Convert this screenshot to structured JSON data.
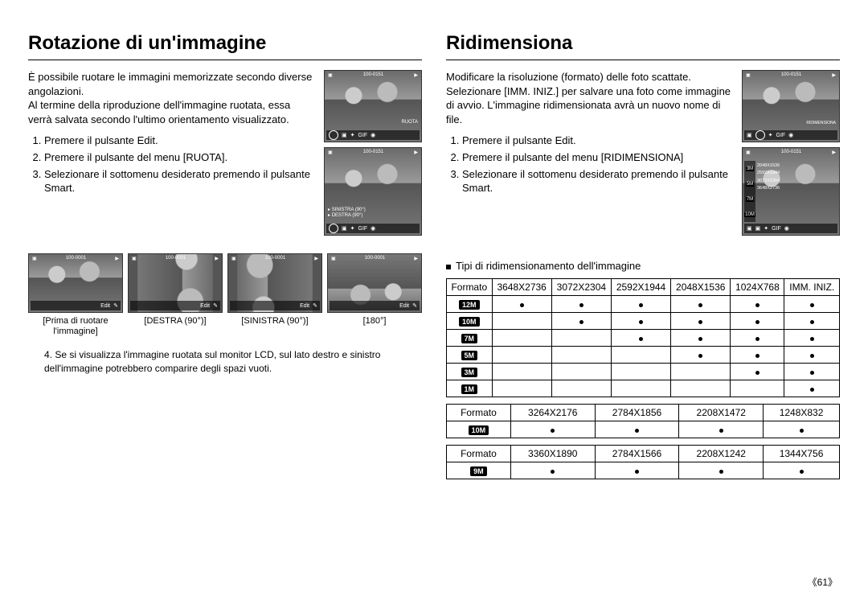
{
  "left": {
    "title": "Rotazione di un'immagine",
    "intro": "È possibile ruotare le immagini memorizzate secondo diverse angolazioni.\nAl termine della riproduzione dell'immagine ruotata, essa verrà salvata secondo l'ultimo orientamento visualizzato.",
    "steps": [
      "Premere il pulsante Edit.",
      "Premere il pulsante del menu [RUOTA].",
      "Selezionare il sottomenu desiderato premendo il pulsante Smart."
    ],
    "lcd_counter": "100-0151",
    "lcd_label1": "RUOTA",
    "lcd_label2a": "SINISTRA (90°)",
    "lcd_label2b": "DESTRA (90°)",
    "thumb_counter": "100-0001",
    "thumb_edit": "Edit",
    "captions": [
      "[Prima di ruotare l'immagine]",
      "[DESTRA (90°)]",
      "[SINISTRA (90°)]",
      "[180°]"
    ],
    "note4": "4. Se si visualizza l'immagine ruotata sul monitor LCD, sul lato destro e sinistro dell'immagine potrebbero comparire degli spazi vuoti."
  },
  "right": {
    "title": "Ridimensiona",
    "intro": "Modificare la risoluzione (formato) delle foto scattate. Selezionare [IMM. INIZ.] per salvare una foto come immagine di avvio. L'immagine ridimensionata avrà un nuovo nome di file.",
    "steps": [
      "Premere il pulsante Edit.",
      "Premere il pulsante del menu [RIDIMENSIONA]",
      "Selezionare il sottomenu desiderato premendo il pulsante Smart."
    ],
    "lcd_counter": "100-0151",
    "lcd_label1": "RIDIMENSIONA",
    "side_items": [
      {
        "tag": "3M",
        "v": "2048X1536"
      },
      {
        "tag": "5M",
        "v": "2592X1944"
      },
      {
        "tag": "7M",
        "v": "3072X2304"
      },
      {
        "tag": "10M",
        "v": "3648X2736"
      }
    ],
    "subhead": "Tipi di ridimensionamento dell'immagine",
    "table1": {
      "head": [
        "Formato",
        "3648X2736",
        "3072X2304",
        "2592X1944",
        "2048X1536",
        "1024X768",
        "IMM. INIZ."
      ],
      "rows": [
        {
          "icon": "12M",
          "d": [
            1,
            1,
            1,
            1,
            1,
            1
          ]
        },
        {
          "icon": "10M",
          "d": [
            0,
            1,
            1,
            1,
            1,
            1
          ]
        },
        {
          "icon": "7M",
          "d": [
            0,
            0,
            1,
            1,
            1,
            1
          ]
        },
        {
          "icon": "5M",
          "d": [
            0,
            0,
            0,
            1,
            1,
            1
          ]
        },
        {
          "icon": "3M",
          "d": [
            0,
            0,
            0,
            0,
            1,
            1
          ]
        },
        {
          "icon": "1M",
          "d": [
            0,
            0,
            0,
            0,
            0,
            1
          ]
        }
      ]
    },
    "table2": {
      "head": [
        "Formato",
        "3264X2176",
        "2784X1856",
        "2208X1472",
        "1248X832"
      ],
      "rows": [
        {
          "icon": "10M",
          "d": [
            1,
            1,
            1,
            1
          ]
        }
      ]
    },
    "table3": {
      "head": [
        "Formato",
        "3360X1890",
        "2784X1566",
        "2208X1242",
        "1344X756"
      ],
      "rows": [
        {
          "icon": "9M",
          "d": [
            1,
            1,
            1,
            1
          ]
        }
      ]
    }
  },
  "page": "《61》"
}
